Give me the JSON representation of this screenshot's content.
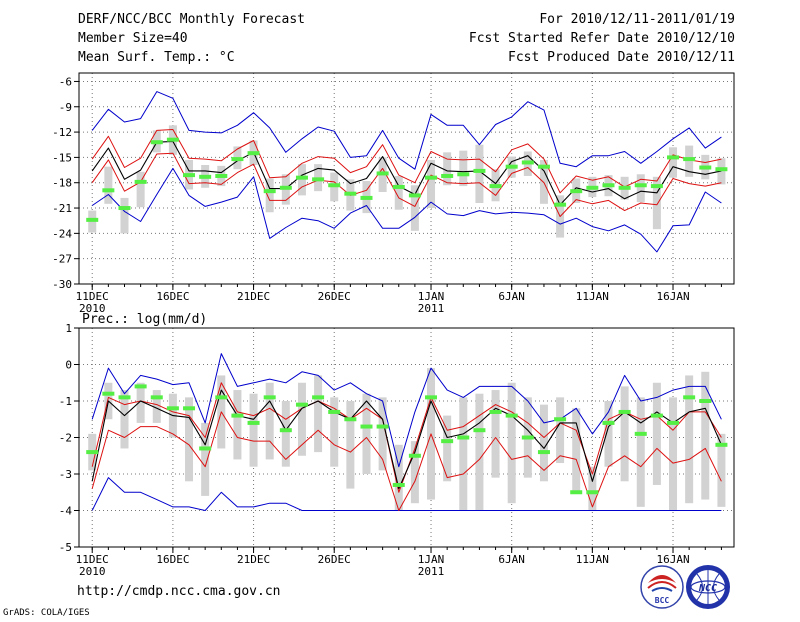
{
  "header": {
    "title": "DERF/NCC/BCC Monthly Forecast",
    "member_size": "Member Size=40",
    "variable": "Mean Surf. Temp.: °C",
    "period": "For 2010/12/11-2011/01/19",
    "fcst_started": "Fcst Started Refer Date 2010/12/10",
    "fcst_produced": "Fcst Produced Date 2010/12/11"
  },
  "footer": {
    "url": "http://cmdp.ncc.cma.gov.cn",
    "grads": "GrADS: COLA/IGES",
    "logo_bcc": "BCC",
    "logo_ncc": "NCC"
  },
  "colors": {
    "box": "#d2d2d2",
    "median": "#55ee44",
    "mean": "#000000",
    "std": "#dd1111",
    "envelope": "#0000cc",
    "grid": "#777777"
  },
  "chart_data": [
    {
      "type": "line",
      "title": "Mean Surf. Temp.: °C",
      "xlabel": "",
      "ylabel": "°C",
      "x_tick_labels": [
        "11DEC",
        "16DEC",
        "21DEC",
        "26DEC",
        "1JAN",
        "6JAN",
        "11JAN",
        "16JAN"
      ],
      "x_tick_days": [
        1,
        6,
        11,
        16,
        22,
        27,
        32,
        37
      ],
      "x_sublabels": [
        {
          "day": 1,
          "label": "2010"
        },
        {
          "day": 22,
          "label": "2011"
        }
      ],
      "ylim": [
        -30,
        -5
      ],
      "yticks": [
        -30,
        -27,
        -24,
        -21,
        -18,
        -15,
        -12,
        -9,
        -6
      ],
      "grid": true,
      "days": [
        1,
        2,
        3,
        4,
        5,
        6,
        7,
        8,
        9,
        10,
        11,
        12,
        13,
        14,
        15,
        16,
        17,
        18,
        19,
        20,
        21,
        22,
        23,
        24,
        25,
        26,
        27,
        28,
        29,
        30,
        31,
        32,
        33,
        34,
        35,
        36,
        37,
        38,
        39,
        40
      ],
      "series": [
        {
          "name": "max",
          "values": [
            -11.8,
            -9.3,
            -10.8,
            -10.4,
            -7.2,
            -8.0,
            -11.8,
            -12.0,
            -12.1,
            -11.2,
            -9.7,
            -11.5,
            -14.4,
            -12.8,
            -11.4,
            -11.9,
            -15.0,
            -14.8,
            -11.8,
            -15.1,
            -16.4,
            -9.9,
            -11.2,
            -11.2,
            -13.5,
            -11.1,
            -10.2,
            -8.4,
            -9.4,
            -15.7,
            -16.1,
            -14.8,
            -14.8,
            -14.3,
            -15.7,
            -14.3,
            -12.8,
            -11.5,
            -13.9,
            -12.6
          ]
        },
        {
          "name": "plus_std",
          "values": [
            -15.2,
            -12.5,
            -16.2,
            -15.1,
            -11.8,
            -11.7,
            -15.1,
            -15.2,
            -15.4,
            -14.0,
            -13.0,
            -17.4,
            -17.3,
            -15.7,
            -14.9,
            -15.1,
            -16.8,
            -16.1,
            -13.5,
            -17.1,
            -18.0,
            -14.3,
            -15.2,
            -15.3,
            -15.2,
            -16.7,
            -14.1,
            -13.4,
            -15.2,
            -19.2,
            -17.2,
            -17.7,
            -17.3,
            -18.5,
            -17.6,
            -17.8,
            -14.7,
            -15.3,
            -15.6,
            -15.2
          ]
        },
        {
          "name": "mean",
          "values": [
            -16.6,
            -13.9,
            -17.6,
            -16.5,
            -13.2,
            -13.1,
            -16.6,
            -16.6,
            -16.8,
            -15.4,
            -14.4,
            -18.7,
            -18.7,
            -17.1,
            -16.3,
            -16.5,
            -18.1,
            -17.5,
            -14.9,
            -18.4,
            -19.4,
            -15.7,
            -16.6,
            -16.7,
            -16.6,
            -18.1,
            -15.5,
            -14.8,
            -16.6,
            -20.6,
            -18.6,
            -19.1,
            -18.7,
            -19.9,
            -19.0,
            -19.2,
            -16.1,
            -16.7,
            -17.0,
            -16.6
          ]
        },
        {
          "name": "minus_std",
          "values": [
            -18.0,
            -15.3,
            -19.0,
            -17.9,
            -14.6,
            -14.5,
            -18.1,
            -18.0,
            -18.2,
            -16.8,
            -15.8,
            -20.1,
            -20.1,
            -18.5,
            -17.7,
            -17.9,
            -19.5,
            -18.9,
            -16.3,
            -19.8,
            -20.8,
            -17.1,
            -18.0,
            -18.1,
            -18.0,
            -19.5,
            -16.9,
            -16.2,
            -18.0,
            -22.0,
            -20.0,
            -20.5,
            -20.1,
            -21.3,
            -20.4,
            -20.6,
            -17.5,
            -18.1,
            -18.4,
            -18.0
          ]
        },
        {
          "name": "min",
          "values": [
            -20.7,
            -19.4,
            -21.4,
            -22.6,
            -19.4,
            -16.3,
            -19.5,
            -20.8,
            -20.3,
            -19.7,
            -17.3,
            -24.6,
            -23.3,
            -22.2,
            -22.5,
            -23.4,
            -21.6,
            -20.7,
            -23.4,
            -23.4,
            -22.1,
            -20.3,
            -21.7,
            -21.9,
            -21.3,
            -21.7,
            -21.5,
            -21.6,
            -21.8,
            -22.9,
            -22.2,
            -23.2,
            -23.7,
            -23.0,
            -24.1,
            -26.2,
            -23.1,
            -23.0,
            -19.1,
            -20.4
          ]
        },
        {
          "name": "median",
          "values": [
            -22.4,
            -18.9,
            -21.0,
            -17.9,
            -13.2,
            -12.9,
            -17.1,
            -17.3,
            -17.2,
            -15.2,
            -14.5,
            -19.0,
            -18.6,
            -17.4,
            -17.6,
            -18.3,
            -19.3,
            -19.8,
            -16.9,
            -18.5,
            -19.5,
            -17.4,
            -17.2,
            -17.0,
            -16.6,
            -18.4,
            -16.1,
            -15.6,
            -16.1,
            -20.6,
            -19.0,
            -18.6,
            -18.3,
            -18.6,
            -18.3,
            -18.4,
            -15.0,
            -15.2,
            -16.2,
            -16.4
          ]
        },
        {
          "name": "box_upper",
          "values": [
            -21.3,
            -16.1,
            -19.8,
            -16.7,
            -11.8,
            -11.2,
            -15.3,
            -15.9,
            -16.0,
            -13.7,
            -13.0,
            -17.5,
            -17.0,
            -15.8,
            -15.8,
            -16.8,
            -17.6,
            -17.8,
            -15.0,
            -17.2,
            -18.3,
            -15.3,
            -14.4,
            -14.2,
            -13.5,
            -16.4,
            -14.9,
            -14.3,
            -15.3,
            -19.5,
            -17.5,
            -17.3,
            -17.1,
            -17.3,
            -17.0,
            -17.3,
            -13.8,
            -13.6,
            -14.7,
            -15.1
          ]
        },
        {
          "name": "box_lower",
          "values": [
            -23.9,
            -20.5,
            -24.0,
            -20.9,
            -14.4,
            -14.7,
            -18.8,
            -18.6,
            -18.4,
            -16.4,
            -15.9,
            -21.5,
            -20.6,
            -19.5,
            -19.0,
            -20.2,
            -21.3,
            -21.6,
            -19.1,
            -21.2,
            -23.7,
            -21.0,
            -18.3,
            -18.4,
            -20.4,
            -20.2,
            -17.4,
            -17.2,
            -20.5,
            -24.5,
            -20.4,
            -19.7,
            -19.6,
            -20.0,
            -20.3,
            -23.5,
            -17.4,
            -17.3,
            -17.6,
            -18.2
          ]
        }
      ]
    },
    {
      "type": "line",
      "title": "Prec.: log(mm/d)",
      "xlabel": "",
      "ylabel": "log(mm/d)",
      "x_tick_labels": [
        "11DEC",
        "16DEC",
        "21DEC",
        "26DEC",
        "1JAN",
        "6JAN",
        "11JAN",
        "16JAN"
      ],
      "x_tick_days": [
        1,
        6,
        11,
        16,
        22,
        27,
        32,
        37
      ],
      "x_sublabels": [
        {
          "day": 1,
          "label": "2010"
        },
        {
          "day": 22,
          "label": "2011"
        }
      ],
      "ylim": [
        -5,
        1
      ],
      "yticks": [
        -5,
        -4,
        -3,
        -2,
        -1,
        0,
        1
      ],
      "grid": true,
      "days": [
        1,
        2,
        3,
        4,
        5,
        6,
        7,
        8,
        9,
        10,
        11,
        12,
        13,
        14,
        15,
        16,
        17,
        18,
        19,
        20,
        21,
        22,
        23,
        24,
        25,
        26,
        27,
        28,
        29,
        30,
        31,
        32,
        33,
        34,
        35,
        36,
        37,
        38,
        39,
        40
      ],
      "series": [
        {
          "name": "max",
          "values": [
            -1.5,
            -0.1,
            -0.8,
            -0.3,
            -0.4,
            -0.55,
            -0.5,
            -1.6,
            0.3,
            -0.6,
            -0.5,
            -0.4,
            -0.5,
            -0.2,
            -0.3,
            -0.7,
            -0.5,
            -0.8,
            -1.0,
            -2.8,
            -1.3,
            -0.1,
            -0.7,
            -0.9,
            -0.6,
            -0.6,
            -0.6,
            -1.0,
            -1.6,
            -1.5,
            -1.2,
            -1.9,
            -1.3,
            -0.3,
            -1.0,
            -0.9,
            -0.7,
            -0.6,
            -0.6,
            -1.5
          ]
        },
        {
          "name": "plus_std",
          "values": [
            -2.8,
            -0.9,
            -1.1,
            -1.0,
            -1.1,
            -1.3,
            -1.4,
            -2.0,
            -0.5,
            -1.3,
            -1.4,
            -1.2,
            -1.5,
            -1.2,
            -1.0,
            -1.2,
            -1.5,
            -1.2,
            -1.5,
            -3.5,
            -2.3,
            -0.9,
            -1.8,
            -1.7,
            -1.4,
            -1.1,
            -1.3,
            -1.6,
            -2.0,
            -1.6,
            -1.8,
            -3.0,
            -1.5,
            -1.3,
            -1.5,
            -1.4,
            -1.8,
            -1.3,
            -1.3,
            -2.0
          ]
        },
        {
          "name": "mean",
          "values": [
            -3.2,
            -1.0,
            -1.4,
            -1.0,
            -1.2,
            -1.4,
            -1.45,
            -2.2,
            -0.7,
            -1.4,
            -1.5,
            -1.0,
            -1.8,
            -1.2,
            -1.0,
            -1.3,
            -1.5,
            -1.0,
            -1.5,
            -3.4,
            -2.4,
            -1.0,
            -2.0,
            -1.9,
            -1.6,
            -1.2,
            -1.4,
            -1.8,
            -2.3,
            -1.6,
            -1.6,
            -3.2,
            -1.7,
            -1.3,
            -1.6,
            -1.3,
            -1.6,
            -1.3,
            -1.2,
            -2.2
          ]
        },
        {
          "name": "minus_std",
          "values": [
            -3.4,
            -1.8,
            -2.0,
            -1.7,
            -1.7,
            -1.9,
            -2.2,
            -2.8,
            -1.3,
            -2.0,
            -2.1,
            -2.1,
            -2.6,
            -2.2,
            -1.8,
            -2.2,
            -2.4,
            -2.0,
            -2.6,
            -4.0,
            -3.2,
            -1.9,
            -3.1,
            -3.0,
            -2.6,
            -2.0,
            -2.6,
            -2.5,
            -2.9,
            -2.5,
            -2.6,
            -3.9,
            -2.8,
            -2.5,
            -2.8,
            -2.3,
            -2.7,
            -2.6,
            -2.3,
            -3.2
          ]
        },
        {
          "name": "min",
          "values": [
            -4.0,
            -3.1,
            -3.5,
            -3.5,
            -3.7,
            -3.9,
            -3.9,
            -4.0,
            -3.5,
            -3.9,
            -3.9,
            -3.8,
            -3.8,
            -4.0,
            -4.0,
            -4.0,
            -4.0,
            -4.0,
            -4.0,
            -4.0,
            -4.0,
            -4.0,
            -4.0,
            -4.0,
            -4.0,
            -4.0,
            -4.0,
            -4.0,
            -4.0,
            -4.0,
            -4.0,
            -4.0,
            -4.0,
            -4.0,
            -4.0,
            -4.0,
            -4.0,
            -4.0,
            -4.0,
            -4.0
          ]
        },
        {
          "name": "median",
          "values": [
            -2.4,
            -0.8,
            -0.9,
            -0.6,
            -0.9,
            -1.2,
            -1.2,
            -2.3,
            -0.9,
            -1.4,
            -1.6,
            -0.9,
            -1.8,
            -1.1,
            -0.9,
            -1.3,
            -1.5,
            -1.7,
            -1.7,
            -3.3,
            -2.5,
            -0.9,
            -2.1,
            -2.0,
            -1.8,
            -1.3,
            -1.4,
            -2.0,
            -2.4,
            -1.5,
            -3.5,
            -3.5,
            -1.6,
            -1.3,
            -1.9,
            -1.4,
            -1.6,
            -0.9,
            -1.0,
            -2.2
          ]
        },
        {
          "name": "box_upper",
          "values": [
            -1.9,
            -0.5,
            -0.7,
            -0.5,
            -0.7,
            -0.8,
            -0.9,
            -1.6,
            -0.3,
            -0.7,
            -0.8,
            -0.5,
            -1.0,
            -0.5,
            -0.3,
            -0.9,
            -1.0,
            -0.8,
            -0.9,
            -2.2,
            -2.1,
            -0.1,
            -1.4,
            -0.9,
            -0.8,
            -0.7,
            -0.5,
            -0.9,
            -1.1,
            -0.9,
            -1.2,
            -2.8,
            -1.0,
            -0.6,
            -0.9,
            -0.5,
            -0.9,
            -0.3,
            -0.2,
            -1.9
          ]
        },
        {
          "name": "box_lower",
          "values": [
            -2.9,
            -1.5,
            -2.3,
            -1.6,
            -1.6,
            -2.0,
            -3.2,
            -3.6,
            -2.3,
            -2.6,
            -2.8,
            -2.6,
            -2.8,
            -2.5,
            -2.4,
            -2.8,
            -3.4,
            -3.0,
            -2.9,
            -4.0,
            -3.8,
            -3.7,
            -3.2,
            -4.0,
            -4.0,
            -3.1,
            -3.8,
            -3.1,
            -3.2,
            -2.7,
            -3.5,
            -4.0,
            -2.8,
            -3.2,
            -3.9,
            -3.3,
            -4.0,
            -3.8,
            -3.7,
            -3.9
          ]
        }
      ]
    }
  ]
}
